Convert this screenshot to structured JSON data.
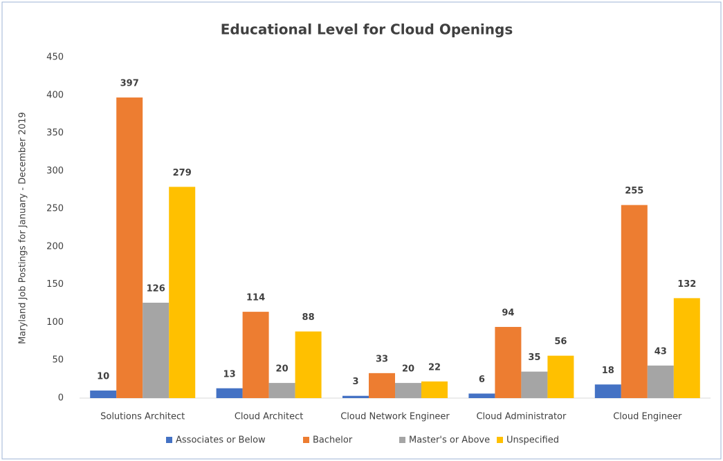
{
  "chart_data": {
    "type": "bar",
    "title": "Educational Level for Cloud Openings",
    "y_label": "Maryland Job Postings for January - December 2019",
    "categories": [
      "Solutions Architect",
      "Cloud Architect",
      "Cloud Network Engineer",
      "Cloud Administrator",
      "Cloud Engineer"
    ],
    "series": [
      {
        "name": "Associates or Below",
        "color": "#4472c4",
        "values": [
          10,
          13,
          3,
          6,
          18
        ]
      },
      {
        "name": "Bachelor",
        "color": "#ed7d31",
        "values": [
          397,
          114,
          33,
          94,
          255
        ]
      },
      {
        "name": "Master's or Above",
        "color": "#a5a5a5",
        "values": [
          126,
          20,
          20,
          35,
          43
        ]
      },
      {
        "name": "Unspecified",
        "color": "#ffc000",
        "values": [
          279,
          88,
          22,
          56,
          132
        ]
      }
    ],
    "ylim": [
      0,
      450
    ],
    "yticks": [
      0,
      50,
      100,
      150,
      200,
      250,
      300,
      350,
      400,
      450
    ],
    "grid": false,
    "legend": "bottom"
  }
}
